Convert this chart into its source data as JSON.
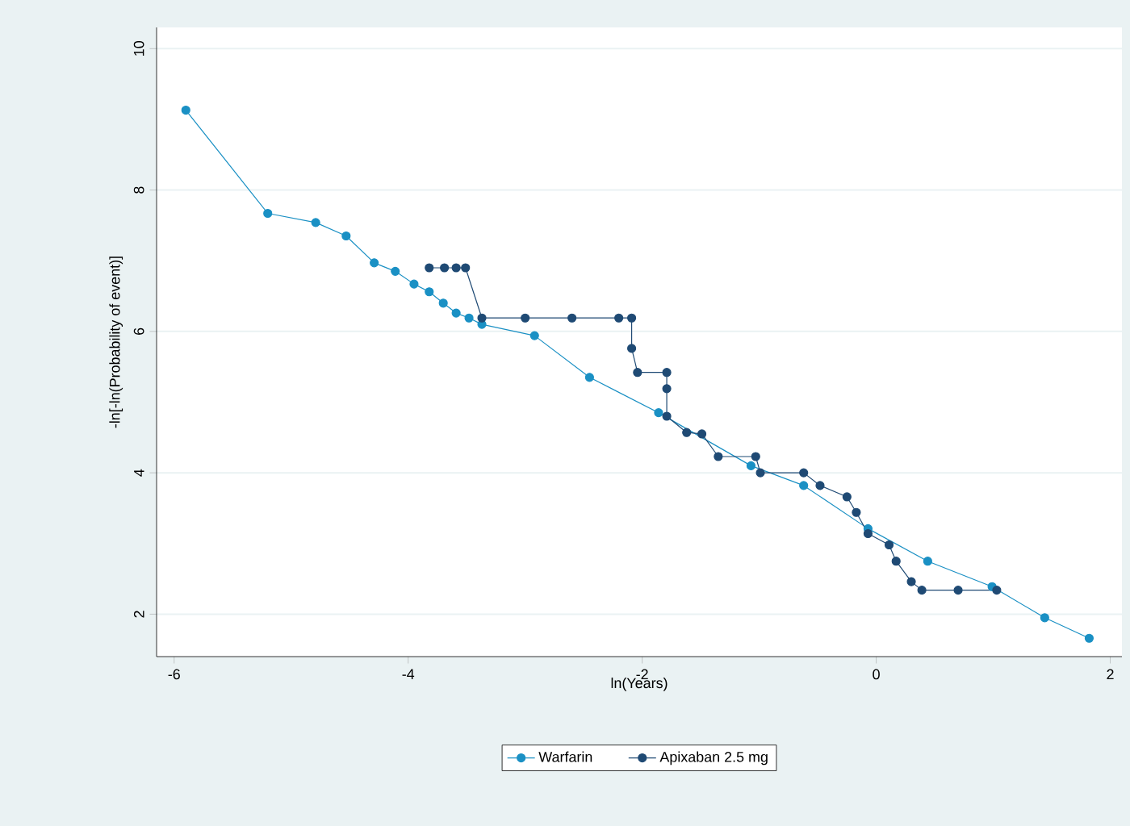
{
  "chart_data": {
    "type": "line",
    "xlabel": "ln(Years)",
    "ylabel": "-ln[-ln(Probability of event)]",
    "xlim": [
      -6.15,
      2.1
    ],
    "ylim": [
      1.4,
      10.3
    ],
    "xticks": [
      -6,
      -4,
      -2,
      0,
      2
    ],
    "yticks": [
      2,
      4,
      6,
      8,
      10
    ],
    "grid": "y",
    "legend": "bottom",
    "marker": "circle",
    "line_style": "solid",
    "series": [
      {
        "name": "Warfarin",
        "color": "#1a90c4",
        "x": [
          -5.9,
          -5.2,
          -4.79,
          -4.53,
          -4.29,
          -4.11,
          -3.95,
          -3.82,
          -3.7,
          -3.59,
          -3.48,
          -3.37,
          -2.92,
          -2.45,
          -1.86,
          -1.07,
          -0.62,
          -0.07,
          0.44,
          0.99,
          1.44,
          1.82
        ],
        "values": [
          9.13,
          7.67,
          7.54,
          7.35,
          6.97,
          6.85,
          6.67,
          6.56,
          6.4,
          6.26,
          6.19,
          6.1,
          5.94,
          5.35,
          4.85,
          4.1,
          3.82,
          3.21,
          2.75,
          2.39,
          1.95,
          1.66
        ]
      },
      {
        "name": "Apixaban 2.5 mg",
        "color": "#1f4a74",
        "x": [
          -3.82,
          -3.69,
          -3.59,
          -3.51,
          -3.37,
          -3.0,
          -2.6,
          -2.2,
          -2.09,
          -2.09,
          -2.04,
          -1.79,
          -1.79,
          -1.79,
          -1.62,
          -1.49,
          -1.35,
          -1.03,
          -0.99,
          -0.62,
          -0.48,
          -0.25,
          -0.17,
          -0.07,
          0.11,
          0.17,
          0.3,
          0.39,
          0.7,
          1.03
        ],
        "values": [
          6.9,
          6.9,
          6.9,
          6.9,
          6.19,
          6.19,
          6.19,
          6.19,
          6.19,
          5.76,
          5.42,
          5.42,
          5.19,
          4.8,
          4.57,
          4.55,
          4.23,
          4.23,
          4.0,
          4.0,
          3.82,
          3.66,
          3.44,
          3.14,
          2.98,
          2.75,
          2.46,
          2.34,
          2.34,
          2.34
        ]
      }
    ]
  }
}
